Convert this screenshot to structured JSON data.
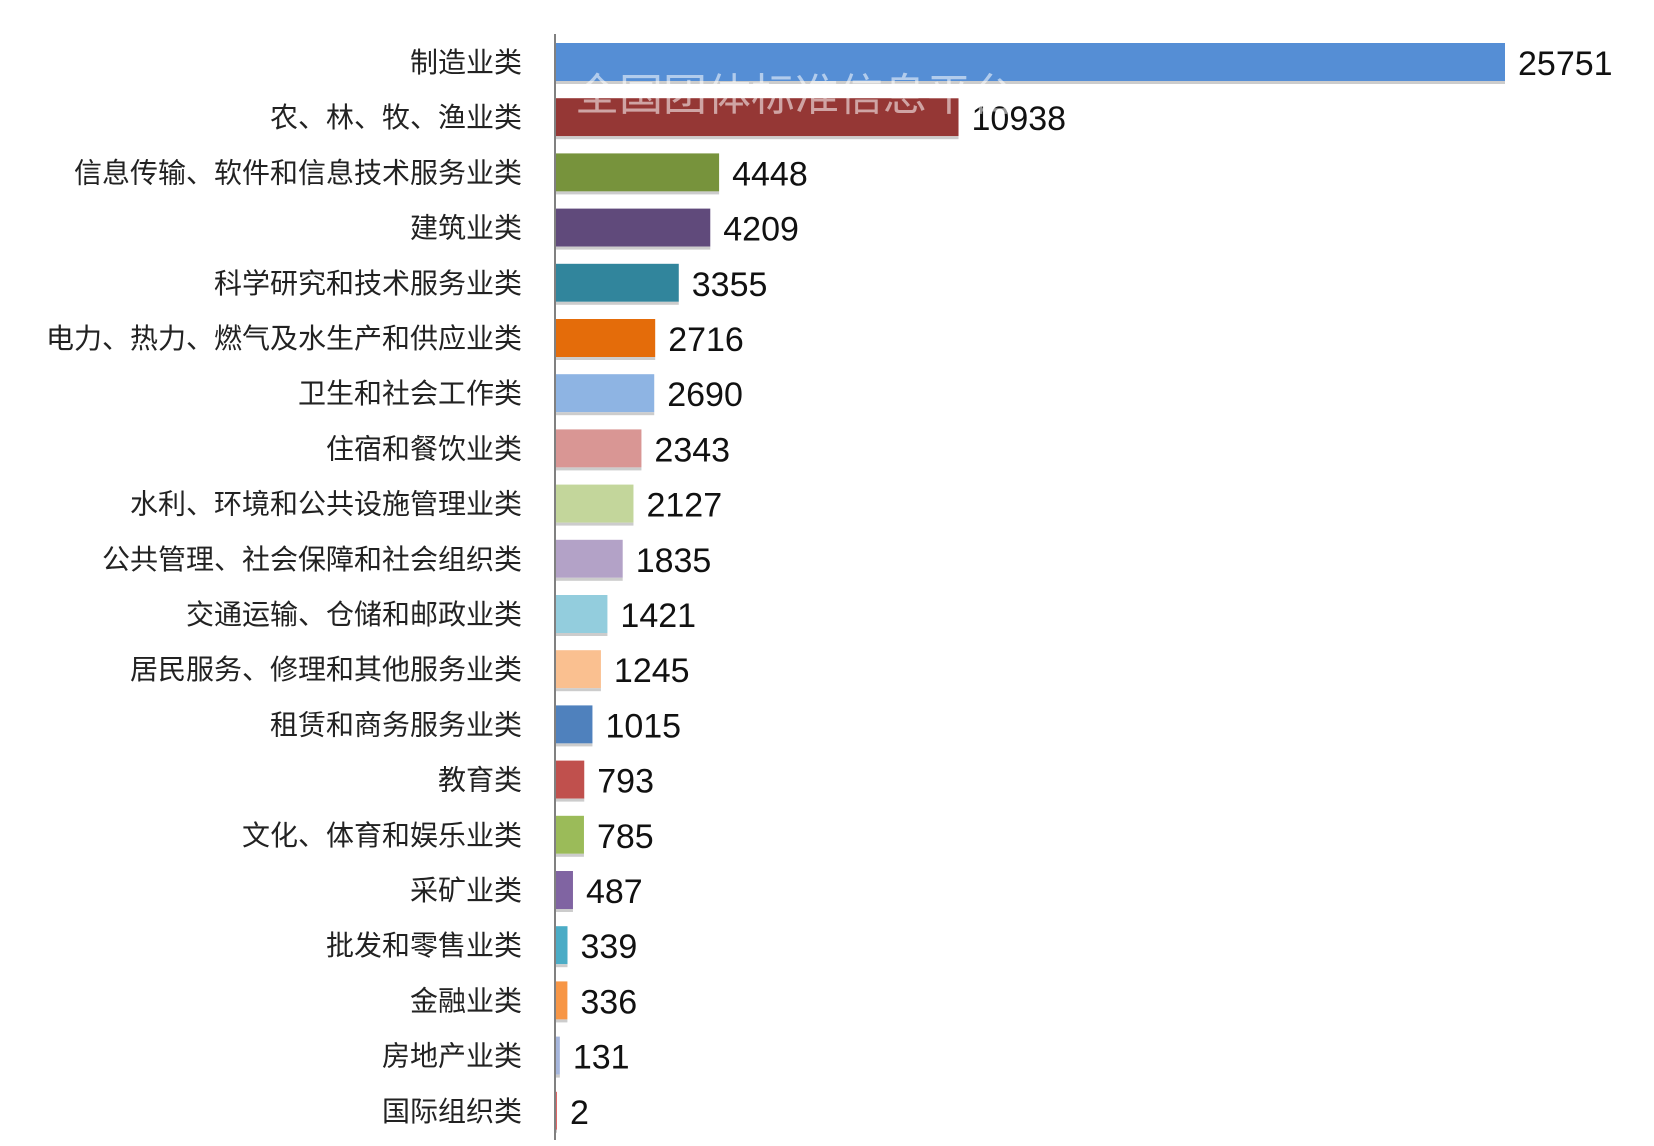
{
  "watermark": "全国团体标准信息平台",
  "chart_data": {
    "type": "bar",
    "orientation": "horizontal",
    "title": "",
    "xlabel": "",
    "ylabel": "",
    "xlim": [
      0,
      25751
    ],
    "grid": false,
    "legend": "none",
    "categories": [
      "制造业类",
      "农、林、牧、渔业类",
      "信息传输、软件和信息技术服务业类",
      "建筑业类",
      "科学研究和技术服务业类",
      "电力、热力、燃气及水生产和供应业类",
      "卫生和社会工作类",
      "住宿和餐饮业类",
      "水利、环境和公共设施管理业类",
      "公共管理、社会保障和社会组织类",
      "交通运输、仓储和邮政业类",
      "居民服务、修理和其他服务业类",
      "租赁和商务服务业类",
      "教育类",
      "文化、体育和娱乐业类",
      "采矿业类",
      "批发和零售业类",
      "金融业类",
      "房地产业类",
      "国际组织类"
    ],
    "values": [
      25751,
      10938,
      4448,
      4209,
      3355,
      2716,
      2690,
      2343,
      2127,
      1835,
      1421,
      1245,
      1015,
      793,
      785,
      487,
      339,
      336,
      131,
      2
    ],
    "colors": [
      "#558ED5",
      "#953735",
      "#77933C",
      "#604A7B",
      "#31859C",
      "#E46C0A",
      "#8EB4E3",
      "#D99694",
      "#C3D69B",
      "#B3A2C7",
      "#93CDDD",
      "#FAC090",
      "#4F81BD",
      "#C0504D",
      "#9BBB59",
      "#8064A2",
      "#4BACC6",
      "#F79646",
      "#A6B6DC",
      "#E06666"
    ]
  }
}
